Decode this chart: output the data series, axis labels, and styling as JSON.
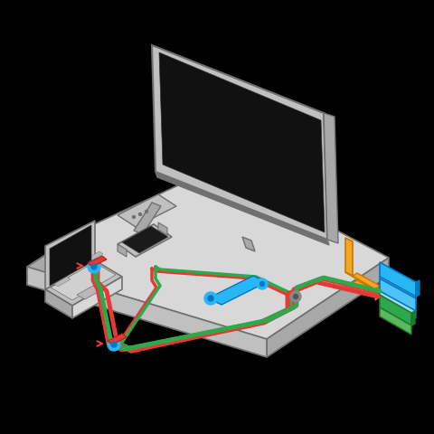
{
  "bg_color": "#000000",
  "gray_outline": "#888888",
  "gray_fill": "#c0c0c0",
  "gray_dark": "#707070",
  "gray_light": "#d8d8d8",
  "gray_mid": "#a8a8a8",
  "gray_darker": "#505050",
  "red": "#e53935",
  "green": "#2ea84b",
  "blue": "#29b6f6",
  "orange": "#f5a623",
  "green_dark": "#1b7a30",
  "blue_dark": "#0277bd",
  "white": "#ffffff"
}
